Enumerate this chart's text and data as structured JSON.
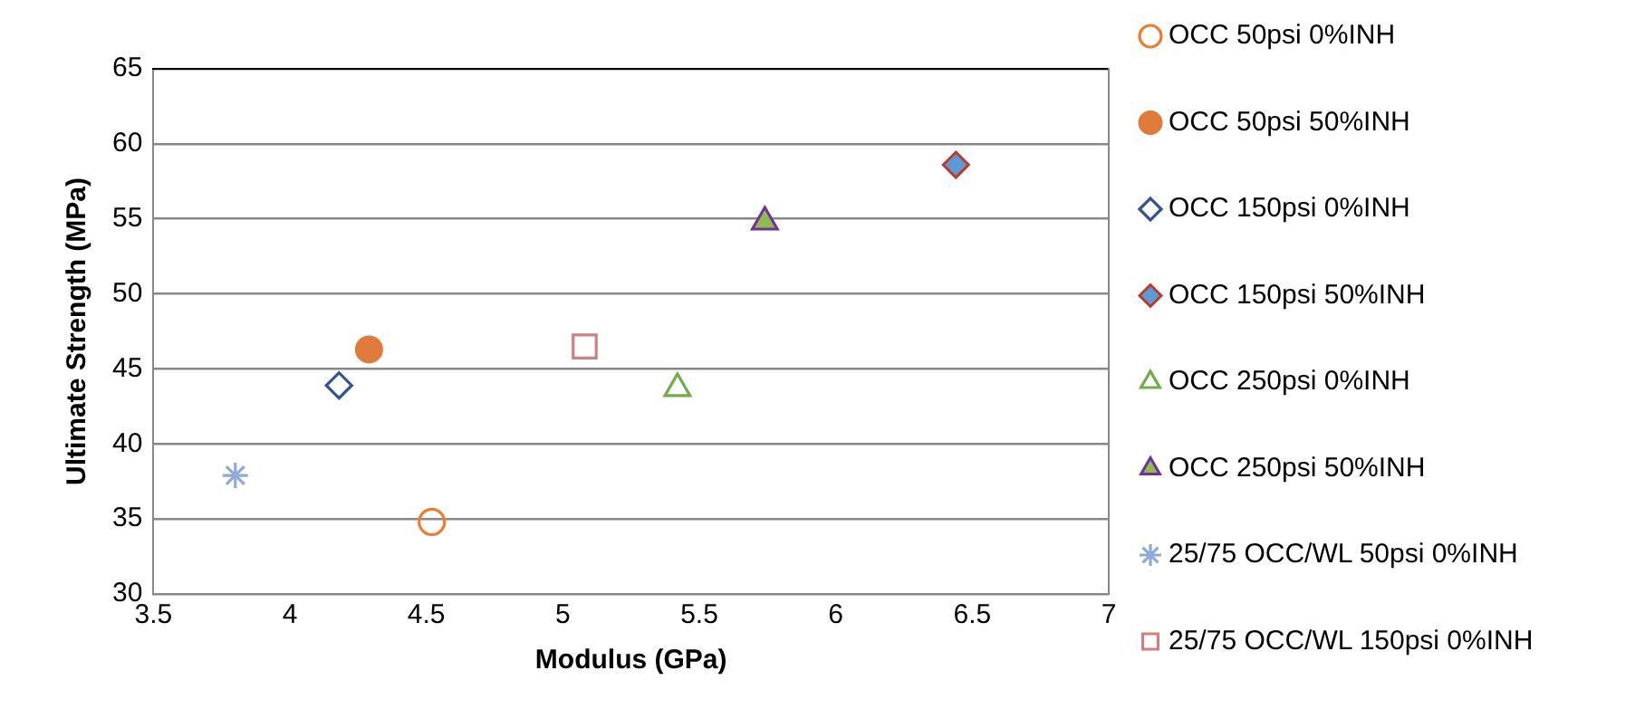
{
  "chart_data": {
    "type": "scatter",
    "xlabel": "Modulus (GPa)",
    "ylabel": "Ultimate Strength (MPa)",
    "xlim": [
      3.5,
      7
    ],
    "xticks": [
      3.5,
      4,
      4.5,
      5,
      5.5,
      6,
      6.5,
      7
    ],
    "ylim": [
      30,
      65
    ],
    "yticks": [
      30,
      35,
      40,
      45,
      50,
      55,
      60,
      65
    ],
    "grid": "y",
    "legend": "right",
    "series": [
      {
        "name": "OCC 50psi 0%INH",
        "color": "#ed7d31",
        "marker": "circle",
        "x": [
          4.52
        ],
        "values": [
          34.8
        ]
      },
      {
        "name": "OCC 50psi 50%INH",
        "color": "#e07b39",
        "colors": [
          "#e07b39"
        ],
        "marker": "circle",
        "x": [
          4.29
        ],
        "values": [
          46.3
        ]
      },
      {
        "name": "OCC 150psi 0%INH",
        "color": "#2f5597",
        "marker": "diamond",
        "x": [
          4.18
        ],
        "values": [
          43.9
        ]
      },
      {
        "name": "OCC 150psi 50%INH",
        "color": "#c0392b",
        "colors": [
          "#5b9bd5"
        ],
        "marker": "diamond",
        "x": [
          6.44
        ],
        "values": [
          58.6
        ]
      },
      {
        "name": "OCC 250psi 0%INH",
        "color": "#70ad47",
        "marker": "triangle",
        "x": [
          5.42
        ],
        "values": [
          43.7
        ]
      },
      {
        "name": "OCC 250psi 50%INH",
        "color": "#7030a0",
        "colors": [
          "#8fbc4a"
        ],
        "marker": "triangle",
        "x": [
          5.74
        ],
        "values": [
          54.8
        ]
      },
      {
        "name": "25/75 OCC/WL 50psi 0%INH",
        "color": "#8eaadb",
        "marker": "cross",
        "x": [
          3.8
        ],
        "values": [
          37.9
        ]
      },
      {
        "name": "25/75 OCC/WL 150psi 0%INH",
        "color": "#d08080",
        "marker": "square",
        "x": [
          5.08
        ],
        "values": [
          46.5
        ]
      }
    ]
  }
}
